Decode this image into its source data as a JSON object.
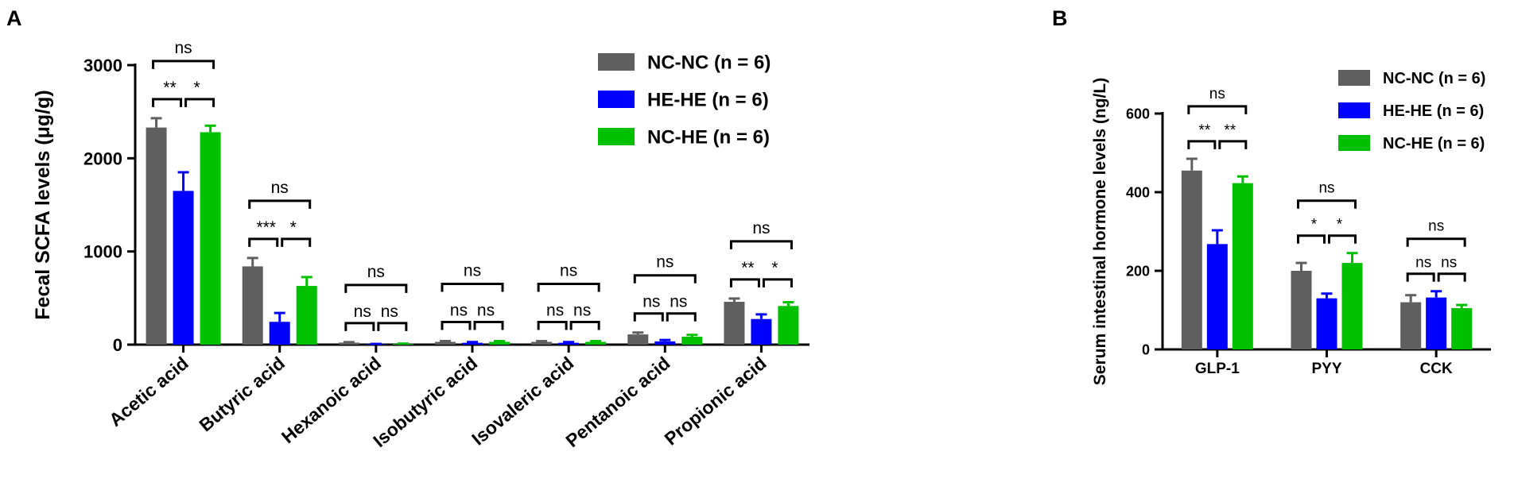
{
  "chart_data": [
    {
      "panel_label": "A",
      "type": "bar",
      "ylabel": "Fecal SCFA levels (μg/g)",
      "ylim": [
        0,
        3000
      ],
      "yticks": [
        0,
        1000,
        2000,
        3000
      ],
      "categories": [
        "Acetic acid",
        "Butyric acid",
        "Hexanoic acid",
        "Isobutyric acid",
        "Isovaleric acid",
        "Pentanoic acid",
        "Propionic acid"
      ],
      "series": [
        {
          "name": "NC-NC (n = 6)",
          "color": "#5f5f5f",
          "values": [
            2330,
            840,
            22,
            30,
            30,
            110,
            460
          ],
          "errors": [
            100,
            90,
            5,
            8,
            8,
            20,
            35
          ]
        },
        {
          "name": "HE-HE (n = 6)",
          "color": "#0000ff",
          "values": [
            1650,
            245,
            5,
            20,
            20,
            35,
            275
          ],
          "errors": [
            200,
            95,
            3,
            8,
            8,
            15,
            50
          ]
        },
        {
          "name": "NC-HE (n = 6)",
          "color": "#00c000",
          "values": [
            2280,
            630,
            8,
            30,
            30,
            85,
            415
          ],
          "errors": [
            70,
            95,
            3,
            8,
            8,
            20,
            40
          ]
        }
      ],
      "significance": [
        {
          "category": 0,
          "pair12": "**",
          "pair23": "*",
          "pair13": "ns"
        },
        {
          "category": 1,
          "pair12": "***",
          "pair23": "*",
          "pair13": "ns"
        },
        {
          "category": 2,
          "pair12": "ns",
          "pair23": "ns",
          "pair13": "ns"
        },
        {
          "category": 3,
          "pair12": "ns",
          "pair23": "ns",
          "pair13": "ns"
        },
        {
          "category": 4,
          "pair12": "ns",
          "pair23": "ns",
          "pair13": "ns"
        },
        {
          "category": 5,
          "pair12": "ns",
          "pair23": "ns",
          "pair13": "ns"
        },
        {
          "category": 6,
          "pair12": "**",
          "pair23": "*",
          "pair13": "ns"
        }
      ],
      "legend_position": "top-right"
    },
    {
      "panel_label": "B",
      "type": "bar",
      "ylabel": "Serum intestinal hormone levels (ng/L)",
      "ylim": [
        0,
        600
      ],
      "yticks": [
        0,
        200,
        400,
        600
      ],
      "categories": [
        "GLP-1",
        "PYY",
        "CCK"
      ],
      "series": [
        {
          "name": "NC-NC (n = 6)",
          "color": "#5f5f5f",
          "values": [
            455,
            200,
            120
          ],
          "errors": [
            30,
            20,
            18
          ]
        },
        {
          "name": "HE-HE (n = 6)",
          "color": "#0000ff",
          "values": [
            268,
            130,
            132
          ],
          "errors": [
            35,
            12,
            16
          ]
        },
        {
          "name": "NC-HE (n = 6)",
          "color": "#00c000",
          "values": [
            423,
            220,
            105
          ],
          "errors": [
            17,
            25,
            8
          ]
        }
      ],
      "significance": [
        {
          "category": 0,
          "pair12": "**",
          "pair23": "**",
          "pair13": "ns"
        },
        {
          "category": 1,
          "pair12": "*",
          "pair23": "*",
          "pair13": "ns"
        },
        {
          "category": 2,
          "pair12": "ns",
          "pair23": "ns",
          "pair13": "ns"
        }
      ],
      "legend_position": "top-right"
    }
  ]
}
